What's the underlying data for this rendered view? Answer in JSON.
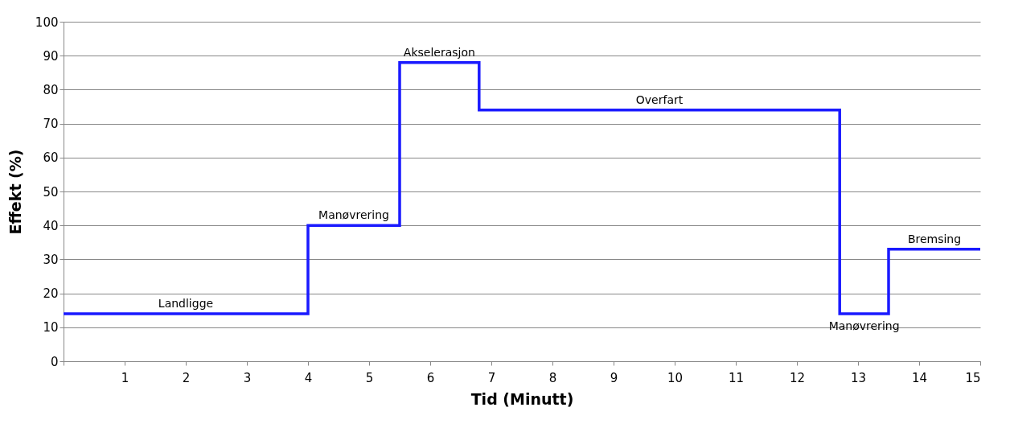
{
  "chart_data": {
    "type": "step",
    "xlabel": "Tid (Minutt)",
    "ylabel": "Effekt (%)",
    "x": [
      0,
      4,
      5.5,
      6.8,
      12.7,
      13.5,
      15
    ],
    "series": [
      {
        "color": "#1a1aff",
        "values": [
          14,
          40,
          88,
          74,
          14,
          33,
          33
        ]
      }
    ],
    "xlim": [
      0,
      15
    ],
    "xticks": [
      {
        "value": 0,
        "label": null
      },
      1,
      2,
      3,
      4,
      5,
      6,
      7,
      8,
      9,
      10,
      11,
      12,
      13,
      14,
      15
    ],
    "ylim": [
      0,
      100
    ],
    "yticks": [
      0,
      10,
      20,
      30,
      40,
      50,
      60,
      70,
      80,
      90,
      100
    ],
    "grid": "y",
    "legend": false,
    "marker": "none",
    "line_style": "solid",
    "annotations": [
      "Landligge",
      "Manøvrering",
      "Akselerasjon",
      "Overfart",
      "Manøvrering",
      "Bremsing"
    ]
  }
}
